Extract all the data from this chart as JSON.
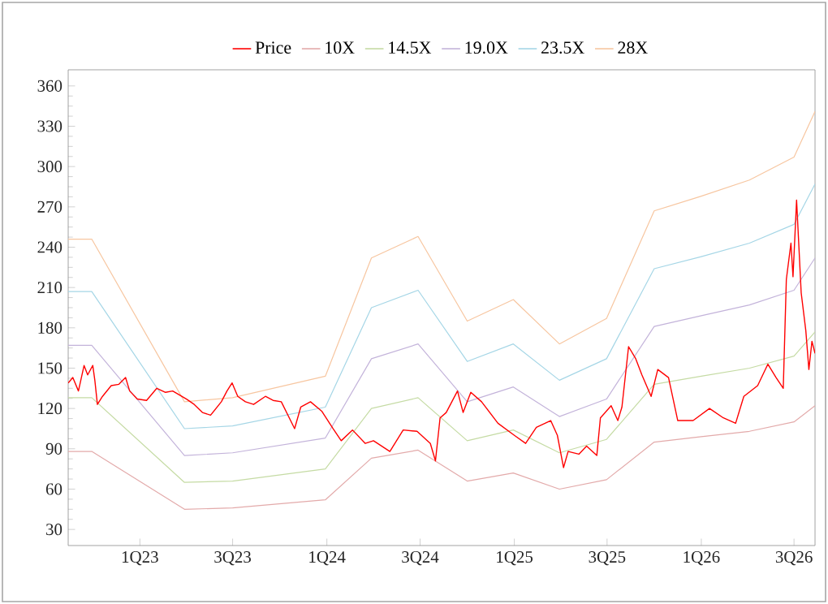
{
  "chart_data": {
    "type": "line",
    "legend": "top",
    "grid": false,
    "marker": "none",
    "line_style": "solid",
    "xlim": [
      "2022-08-14",
      "2026-08-11"
    ],
    "ylim": [
      18,
      372
    ],
    "xticks": [
      {
        "value": "2023-01-01",
        "label": "1Q23"
      },
      {
        "value": "2023-07-01",
        "label": "3Q23"
      },
      {
        "value": "2024-01-01",
        "label": "1Q24"
      },
      {
        "value": "2024-07-01",
        "label": "3Q24"
      },
      {
        "value": "2025-01-01",
        "label": "1Q25"
      },
      {
        "value": "2025-07-01",
        "label": "3Q25"
      },
      {
        "value": "2026-01-01",
        "label": "1Q26"
      },
      {
        "value": "2026-07-01",
        "label": "3Q26"
      }
    ],
    "yticks": [
      30,
      60,
      90,
      120,
      150,
      180,
      210,
      240,
      270,
      300,
      330,
      360
    ],
    "x": [
      "2022-08-14",
      "2022-09-29",
      "2023-03-29",
      "2023-07-01",
      "2023-12-29",
      "2024-03-28",
      "2024-06-27",
      "2024-10-01",
      "2024-12-30",
      "2025-03-30",
      "2025-06-30",
      "2025-10-01",
      "2026-01-01",
      "2026-04-05",
      "2026-07-01",
      "2026-08-11"
    ],
    "series": [
      {
        "name": "Price",
        "color": "#ff0000",
        "x": [
          "2022-08-14",
          "2022-08-23",
          "2022-09-03",
          "2022-09-14",
          "2022-09-21",
          "2022-10-01",
          "2022-10-05",
          "2022-10-10",
          "2022-10-20",
          "2022-11-06",
          "2022-11-21",
          "2022-12-04",
          "2022-12-12",
          "2022-12-27",
          "2023-01-14",
          "2023-02-03",
          "2023-02-20",
          "2023-03-06",
          "2023-04-02",
          "2023-04-17",
          "2023-05-03",
          "2023-05-19",
          "2023-06-09",
          "2023-06-20",
          "2023-06-30",
          "2023-07-11",
          "2023-07-26",
          "2023-08-11",
          "2023-09-03",
          "2023-09-18",
          "2023-10-04",
          "2023-10-30",
          "2023-11-11",
          "2023-11-30",
          "2023-12-22",
          "2024-01-13",
          "2024-01-29",
          "2024-02-20",
          "2024-03-16",
          "2024-04-01",
          "2024-05-03",
          "2024-05-29",
          "2024-06-25",
          "2024-07-21",
          "2024-07-31",
          "2024-08-09",
          "2024-08-21",
          "2024-09-12",
          "2024-09-23",
          "2024-10-08",
          "2024-10-29",
          "2024-11-30",
          "2025-01-01",
          "2025-01-23",
          "2025-02-13",
          "2025-03-13",
          "2025-03-26",
          "2025-04-07",
          "2025-04-16",
          "2025-05-07",
          "2025-05-22",
          "2025-06-11",
          "2025-06-18",
          "2025-07-09",
          "2025-07-22",
          "2025-07-30",
          "2025-08-12",
          "2025-08-26",
          "2025-09-07",
          "2025-09-25",
          "2025-10-08",
          "2025-10-29",
          "2025-11-16",
          "2025-12-16",
          "2026-01-17",
          "2026-02-13",
          "2026-03-09",
          "2026-03-25",
          "2026-04-21",
          "2026-05-11",
          "2026-05-27",
          "2026-06-10",
          "2026-06-16",
          "2026-06-25",
          "2026-06-29",
          "2026-07-06",
          "2026-07-15",
          "2026-07-24",
          "2026-07-30",
          "2026-08-05",
          "2026-08-11"
        ],
        "values": [
          139,
          143,
          133,
          152,
          145,
          152,
          141,
          123,
          129,
          137,
          138,
          143,
          133,
          127,
          126,
          135,
          132,
          133,
          127,
          123,
          117,
          115,
          125,
          133,
          139,
          129,
          125,
          123,
          129,
          126,
          125,
          105,
          121,
          125,
          118,
          105,
          96,
          104,
          94,
          96,
          88,
          104,
          103,
          94,
          81,
          113,
          117,
          133,
          117,
          132,
          125,
          109,
          100,
          94,
          106,
          111,
          100,
          76,
          88,
          86,
          92,
          85,
          113,
          122,
          111,
          121,
          166,
          157,
          145,
          129,
          149,
          143,
          111,
          111,
          120,
          113,
          109,
          129,
          137,
          153,
          143,
          135,
          216,
          243,
          218,
          275,
          206,
          178,
          149,
          170,
          161
        ]
      },
      {
        "name": "10X",
        "color": "#e3aaaa",
        "values": [
          88,
          88,
          45,
          46,
          52,
          83,
          89,
          66,
          72,
          60,
          67,
          95,
          99,
          103,
          110,
          122
        ]
      },
      {
        "name": "14.5X",
        "color": "#c5dba4",
        "values": [
          128,
          128,
          65,
          66,
          75,
          120,
          128,
          96,
          104,
          87,
          97,
          138,
          144,
          150,
          159,
          177
        ]
      },
      {
        "name": "19.0X",
        "color": "#c3b3da",
        "values": [
          167,
          167,
          85,
          87,
          98,
          157,
          168,
          125,
          136,
          114,
          127,
          181,
          189,
          197,
          208,
          232
        ]
      },
      {
        "name": "23.5X",
        "color": "#a5d6e6",
        "values": [
          207,
          207,
          105,
          107,
          121,
          195,
          208,
          155,
          168,
          141,
          157,
          224,
          233,
          243,
          257,
          287
        ]
      },
      {
        "name": "28X",
        "color": "#f7c6a0",
        "values": [
          246,
          246,
          125,
          128,
          144,
          232,
          248,
          185,
          201,
          168,
          187,
          267,
          278,
          290,
          307,
          341
        ]
      }
    ]
  }
}
